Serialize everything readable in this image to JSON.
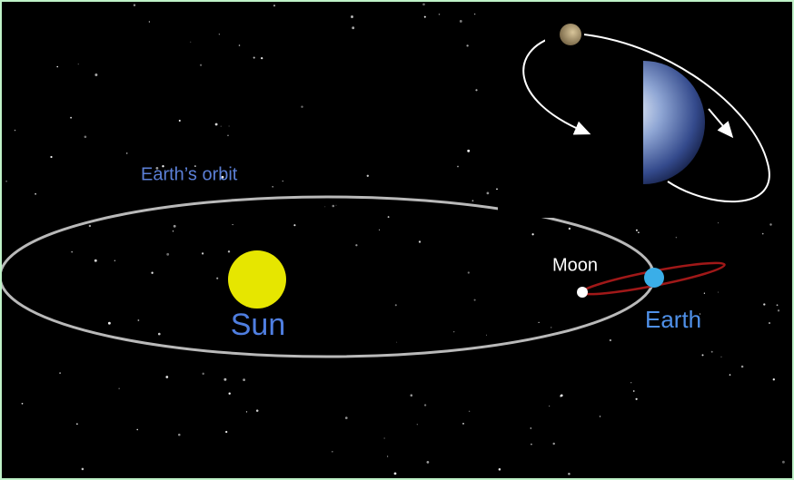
{
  "labels": {
    "orbit": "Earth’s orbit",
    "sun": "Sun",
    "moon": "Moon",
    "earth": "Earth"
  }
}
